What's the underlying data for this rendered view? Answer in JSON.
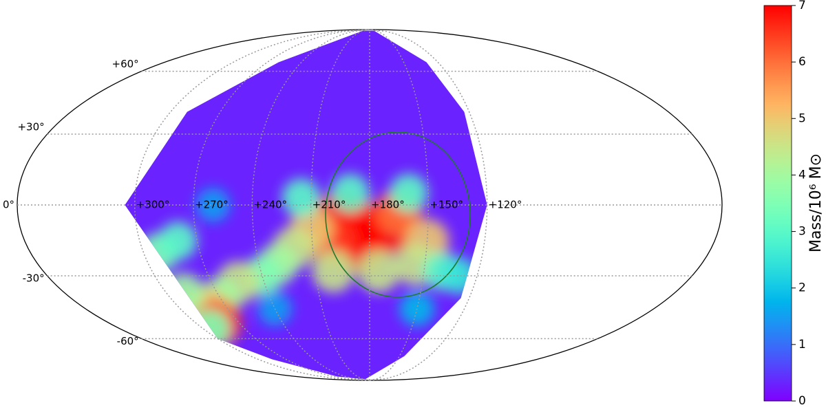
{
  "chart_data": {
    "type": "mollweide_heatmap",
    "colormap": "rainbow",
    "colorbar_label": "Mass/10⁶ M⊙",
    "clim": [
      0,
      7
    ],
    "cticks": [
      0,
      1,
      2,
      3,
      4,
      5,
      6,
      7
    ],
    "lon_ticks": [
      {
        "value": 300,
        "label": "+300°"
      },
      {
        "value": 270,
        "label": "+270°"
      },
      {
        "value": 240,
        "label": "+240°"
      },
      {
        "value": 210,
        "label": "+210°"
      },
      {
        "value": 180,
        "label": "+180°"
      },
      {
        "value": 150,
        "label": "+150°"
      },
      {
        "value": 120,
        "label": "+120°"
      }
    ],
    "lat_ticks": [
      {
        "value": 60,
        "label": "+60°"
      },
      {
        "value": 30,
        "label": "+30°"
      },
      {
        "value": 0,
        "label": "0°"
      },
      {
        "value": -30,
        "label": "-30°"
      },
      {
        "value": -60,
        "label": "-60°"
      }
    ],
    "coverage": {
      "value": 0.3,
      "outline": [
        [
          300,
          -60
        ],
        [
          305,
          0
        ],
        [
          290,
          40
        ],
        [
          260,
          65
        ],
        [
          210,
          88
        ],
        [
          160,
          88
        ],
        [
          130,
          65
        ],
        [
          123,
          40
        ],
        [
          120,
          0
        ],
        [
          125,
          -40
        ],
        [
          145,
          -70
        ],
        [
          200,
          -88
        ],
        [
          260,
          -85
        ],
        [
          285,
          -72
        ]
      ]
    },
    "cells": [
      {
        "lon": 185,
        "lat": -8,
        "value": 7
      },
      {
        "lon": 195,
        "lat": -5,
        "value": 7
      },
      {
        "lon": 170,
        "lat": -10,
        "value": 7
      },
      {
        "lon": 185,
        "lat": -18,
        "value": 7
      },
      {
        "lon": 200,
        "lat": -15,
        "value": 6.5
      },
      {
        "lon": 165,
        "lat": -3,
        "value": 6
      },
      {
        "lon": 210,
        "lat": -10,
        "value": 5
      },
      {
        "lon": 220,
        "lat": -18,
        "value": 4.5
      },
      {
        "lon": 230,
        "lat": -25,
        "value": 4
      },
      {
        "lon": 240,
        "lat": -30,
        "value": 3.5
      },
      {
        "lon": 150,
        "lat": -15,
        "value": 5
      },
      {
        "lon": 155,
        "lat": -25,
        "value": 4.5
      },
      {
        "lon": 140,
        "lat": -28,
        "value": 3
      },
      {
        "lon": 175,
        "lat": -28,
        "value": 4.5
      },
      {
        "lon": 200,
        "lat": -28,
        "value": 4.5
      },
      {
        "lon": 215,
        "lat": 3,
        "value": 3
      },
      {
        "lon": 190,
        "lat": 5,
        "value": 3
      },
      {
        "lon": 160,
        "lat": 5,
        "value": 3
      },
      {
        "lon": 255,
        "lat": -33,
        "value": 4.5
      },
      {
        "lon": 270,
        "lat": -40,
        "value": 4
      },
      {
        "lon": 285,
        "lat": -45,
        "value": 5
      },
      {
        "lon": 285,
        "lat": -52,
        "value": 6.5
      },
      {
        "lon": 290,
        "lat": -38,
        "value": 4
      },
      {
        "lon": 292,
        "lat": -20,
        "value": 3.5
      },
      {
        "lon": 280,
        "lat": -15,
        "value": 3
      },
      {
        "lon": 295,
        "lat": -55,
        "value": 3.5
      },
      {
        "lon": 240,
        "lat": -45,
        "value": 1.5
      },
      {
        "lon": 260,
        "lat": 0,
        "value": 1.5
      },
      {
        "lon": 150,
        "lat": -45,
        "value": 1.8
      },
      {
        "lon": 130,
        "lat": -30,
        "value": 2.5
      }
    ]
  }
}
